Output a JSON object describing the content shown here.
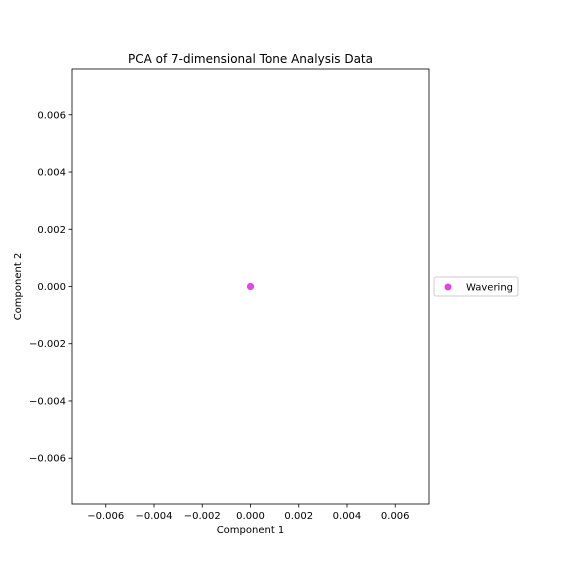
{
  "chart_data": {
    "type": "scatter",
    "title": "PCA of 7-dimensional Tone Analysis Data",
    "xlabel": "Component 1",
    "ylabel": "Component 2",
    "xlim": [
      -0.0074,
      0.0074
    ],
    "ylim": [
      -0.0076,
      0.0076
    ],
    "xticks": [
      -0.006,
      -0.004,
      -0.002,
      0.0,
      0.002,
      0.004,
      0.006
    ],
    "xtick_labels": [
      "−0.006",
      "−0.004",
      "−0.002",
      "0.000",
      "0.002",
      "0.004",
      "0.006"
    ],
    "yticks": [
      -0.006,
      -0.004,
      -0.002,
      0.0,
      0.002,
      0.004,
      0.006
    ],
    "ytick_labels": [
      "−0.006",
      "−0.004",
      "−0.002",
      "0.000",
      "0.002",
      "0.004",
      "0.006"
    ],
    "grid": false,
    "legend_position": "center-right outside",
    "series": [
      {
        "name": "Wavering",
        "color": "#e643e6",
        "points": [
          [
            0.0,
            0.0
          ],
          [
            0.0,
            0.0
          ],
          [
            0.0,
            0.0
          ]
        ]
      }
    ]
  }
}
